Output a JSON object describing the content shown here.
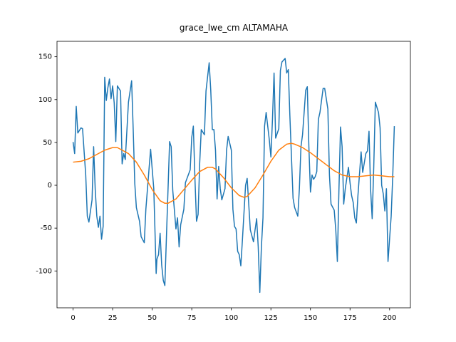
{
  "chart_data": {
    "type": "line",
    "title": "grace_lwe_cm ALTAMAHA",
    "xlim": [
      -10.15,
      213.15
    ],
    "ylim": [
      -143,
      168
    ],
    "xticks": [
      0,
      25,
      50,
      75,
      100,
      125,
      150,
      175,
      200
    ],
    "yticks": [
      -100,
      -50,
      0,
      50,
      100,
      150
    ],
    "series": [
      {
        "color": "#1f77b4",
        "x": [
          0,
          1,
          2,
          3,
          5,
          6,
          8,
          9,
          10,
          12,
          13,
          14,
          15,
          16,
          17,
          18,
          19,
          20,
          21,
          22,
          23,
          24,
          25,
          26,
          27,
          28,
          30,
          31,
          32,
          33,
          35,
          37,
          38,
          39,
          40,
          42,
          43,
          45,
          46,
          48,
          49,
          51,
          52,
          52.5,
          53,
          54,
          55,
          56,
          57,
          58,
          59,
          60,
          61,
          62,
          63,
          65,
          66,
          67,
          68,
          70,
          71,
          72,
          74,
          75,
          76,
          77,
          78,
          79,
          80,
          81,
          83,
          84,
          86,
          87,
          88,
          89,
          90,
          91,
          92,
          93,
          94,
          96,
          97,
          98,
          100,
          101,
          102,
          103,
          104,
          105,
          106,
          107,
          109,
          110,
          112,
          114,
          115,
          116,
          117,
          118,
          119,
          120,
          121,
          122,
          124,
          125,
          126,
          127,
          128,
          130,
          131,
          132,
          134,
          135,
          136,
          137,
          138,
          139,
          140,
          142,
          143,
          144,
          145,
          147,
          148,
          149,
          150,
          151,
          152,
          153,
          154,
          155,
          156,
          158,
          159,
          161,
          162,
          163,
          165,
          166,
          167,
          168,
          169,
          170,
          171,
          172,
          174,
          175,
          176,
          177,
          178,
          179,
          180,
          182,
          183,
          184,
          185,
          186,
          187,
          188,
          189,
          190,
          191,
          193,
          194,
          195,
          196,
          197,
          198,
          199,
          201,
          202,
          203
        ],
        "values": [
          50.5,
          37,
          92,
          61,
          67,
          66,
          12,
          -36,
          -43,
          -17,
          45,
          -5,
          -36,
          -49,
          -36,
          -63,
          -48,
          126,
          99,
          114,
          124,
          101,
          116,
          96,
          51,
          116,
          110,
          25,
          37,
          30,
          97,
          122,
          65,
          2,
          -26,
          -42,
          -60,
          -67,
          -28,
          19,
          42,
          -4,
          -69,
          -103,
          -86,
          -81,
          -56,
          -93,
          -111,
          -117,
          -60,
          -5,
          51,
          45,
          -6,
          -51,
          -38,
          -72,
          -46,
          -28,
          3,
          8,
          18,
          56,
          69,
          8,
          -42,
          -34,
          25,
          65,
          59,
          110,
          143,
          111,
          65,
          65,
          41,
          -16,
          22,
          -4,
          -17,
          -4,
          41,
          57,
          41,
          -28,
          -48,
          -51,
          -77,
          -81,
          -94,
          -64,
          0,
          8,
          -52,
          -66,
          -52,
          -39,
          -72,
          -125,
          -72,
          -38,
          69,
          85,
          53,
          33,
          77,
          131,
          55,
          66,
          134,
          144,
          148,
          131,
          135,
          81,
          33,
          -15,
          -26,
          -36,
          -4,
          45,
          59,
          111,
          115,
          45,
          -8,
          12,
          7,
          10,
          16,
          77,
          85,
          113,
          113,
          89,
          12,
          -22,
          -29,
          -52,
          -89,
          -5,
          68,
          45,
          -22,
          -4,
          21,
          3,
          -12,
          -20,
          -38,
          -44,
          -12,
          39,
          15,
          26,
          37,
          40,
          63,
          -5,
          -39,
          22,
          97,
          85,
          67,
          0,
          -10,
          -30,
          -4,
          -89,
          -36,
          11,
          69
        ]
      },
      {
        "color": "#ff7f0e",
        "x": [
          0,
          5,
          10,
          15,
          20,
          25,
          28,
          30,
          35,
          40,
          45,
          50,
          55,
          58,
          60,
          65,
          70,
          75,
          80,
          85,
          88,
          90,
          95,
          100,
          105,
          108,
          110,
          115,
          120,
          125,
          130,
          135,
          138,
          140,
          145,
          150,
          155,
          160,
          165,
          170,
          175,
          180,
          185,
          190,
          195,
          200,
          203
        ],
        "values": [
          27,
          28,
          31,
          36,
          41,
          44,
          44,
          42,
          37,
          27,
          12,
          -5,
          -18,
          -21,
          -21,
          -16,
          -5,
          6,
          16,
          21,
          21,
          19,
          9,
          -3,
          -12,
          -14,
          -13,
          -3,
          12,
          28,
          41,
          48,
          49,
          48,
          44,
          38,
          31,
          24,
          17,
          12,
          10,
          10,
          11,
          12,
          11,
          10,
          10
        ]
      }
    ]
  }
}
